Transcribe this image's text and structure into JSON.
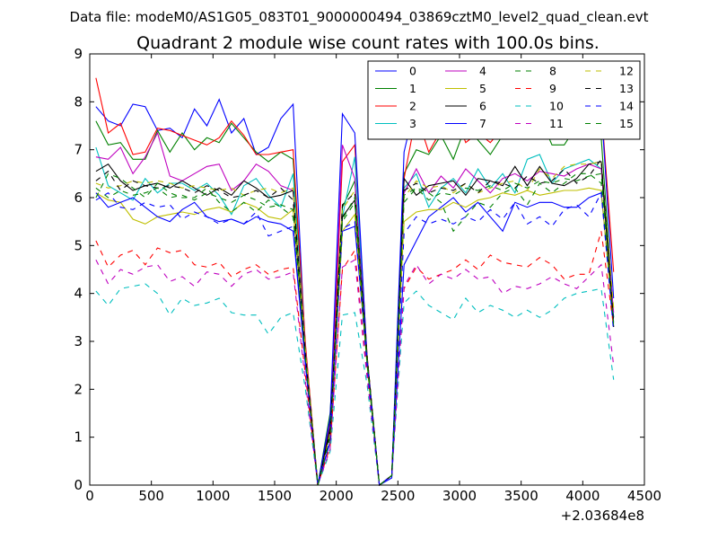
{
  "figure": {
    "suptitle": "Data file: modeM0/AS1G05_083T01_9000000494_03869cztM0_level2_quad_clean.evt"
  },
  "chart_data": {
    "type": "line",
    "title": "Quadrant 2 module wise count rates with 100.0s bins.",
    "xlabel": "",
    "ylabel": "",
    "xlim": [
      0,
      4500
    ],
    "ylim": [
      0,
      9
    ],
    "x_offset_label": "+2.03684e8",
    "xticks": [
      0,
      500,
      1000,
      1500,
      2000,
      2500,
      3000,
      3500,
      4000,
      4500
    ],
    "yticks": [
      0,
      1,
      2,
      3,
      4,
      5,
      6,
      7,
      8,
      9
    ],
    "grid": false,
    "legend_position": "top-right",
    "legend_columns": 4,
    "x": [
      50,
      150,
      250,
      350,
      450,
      550,
      650,
      750,
      850,
      950,
      1050,
      1150,
      1250,
      1350,
      1450,
      1550,
      1650,
      1750,
      1850,
      1950,
      2050,
      2150,
      2250,
      2350,
      2450,
      2550,
      2650,
      2750,
      2850,
      2950,
      3050,
      3150,
      3250,
      3350,
      3450,
      3550,
      3650,
      3750,
      3850,
      3950,
      4050,
      4150,
      4250
    ],
    "series": [
      {
        "name": "0",
        "color": "#0000ff",
        "dash": "solid",
        "values": [
          7.9,
          7.6,
          7.5,
          7.95,
          7.9,
          7.4,
          7.45,
          7.25,
          7.85,
          7.5,
          8.05,
          7.35,
          7.65,
          6.9,
          7.05,
          7.65,
          7.95,
          2.8,
          0.0,
          0.9,
          5.3,
          5.4,
          2.6,
          0.0,
          0.15,
          4.6,
          5.1,
          5.6,
          5.8,
          6.0,
          5.7,
          5.9,
          5.6,
          5.3,
          5.9,
          5.8,
          5.9,
          5.9,
          5.8,
          5.8,
          6.0,
          6.1,
          3.4
        ]
      },
      {
        "name": "1",
        "color": "#008000",
        "dash": "solid",
        "values": [
          7.6,
          7.1,
          7.15,
          6.8,
          6.8,
          7.4,
          6.95,
          7.35,
          7.0,
          7.25,
          7.15,
          7.55,
          7.25,
          6.95,
          6.75,
          6.95,
          6.8,
          2.9,
          0.0,
          1.5,
          5.8,
          6.35,
          2.7,
          0.0,
          0.2,
          6.5,
          7.0,
          6.9,
          7.3,
          6.8,
          7.5,
          7.2,
          6.9,
          7.3,
          7.4,
          7.4,
          7.7,
          7.1,
          7.1,
          7.5,
          7.6,
          7.25,
          3.5
        ]
      },
      {
        "name": "2",
        "color": "#ff0000",
        "dash": "solid",
        "values": [
          8.5,
          7.35,
          7.55,
          6.9,
          6.95,
          7.45,
          7.4,
          7.3,
          7.2,
          7.1,
          7.25,
          7.6,
          7.3,
          6.9,
          6.9,
          6.95,
          7.0,
          2.95,
          0.0,
          1.1,
          6.75,
          7.1,
          2.7,
          0.0,
          0.2,
          6.4,
          7.75,
          6.95,
          7.4,
          7.85,
          7.15,
          7.35,
          7.15,
          7.45,
          7.8,
          7.35,
          7.65,
          7.45,
          7.35,
          7.45,
          7.75,
          7.9,
          4.45
        ]
      },
      {
        "name": "3",
        "color": "#00bfbf",
        "dash": "solid",
        "values": [
          7.05,
          6.25,
          6.1,
          5.95,
          6.4,
          6.1,
          6.3,
          6.3,
          6.15,
          6.3,
          6.05,
          5.65,
          6.25,
          6.4,
          6.05,
          5.8,
          6.5,
          2.8,
          0.0,
          1.2,
          5.6,
          6.85,
          2.6,
          0.0,
          0.2,
          6.2,
          6.5,
          5.8,
          6.2,
          6.4,
          6.1,
          6.6,
          6.2,
          6.5,
          6.1,
          6.8,
          6.9,
          6.3,
          6.6,
          6.7,
          6.8,
          6.6,
          3.5
        ]
      },
      {
        "name": "4",
        "color": "#bf00bf",
        "dash": "solid",
        "values": [
          6.85,
          6.8,
          7.05,
          6.5,
          6.85,
          7.35,
          6.45,
          6.35,
          6.5,
          6.65,
          6.7,
          6.15,
          6.35,
          6.7,
          6.55,
          6.25,
          6.15,
          2.75,
          0.0,
          1.3,
          7.1,
          6.4,
          2.6,
          0.0,
          0.2,
          6.1,
          6.6,
          6.1,
          6.45,
          6.2,
          6.6,
          6.35,
          6.1,
          6.4,
          6.5,
          6.35,
          6.55,
          6.5,
          6.45,
          6.6,
          6.7,
          6.6,
          3.6
        ]
      },
      {
        "name": "5",
        "color": "#bfbf00",
        "dash": "solid",
        "values": [
          6.1,
          5.95,
          5.9,
          5.55,
          5.45,
          5.6,
          5.65,
          5.7,
          5.65,
          5.75,
          5.8,
          5.7,
          5.9,
          5.8,
          5.6,
          5.55,
          5.75,
          2.6,
          0.0,
          1.1,
          5.3,
          5.65,
          2.5,
          0.0,
          0.2,
          5.5,
          5.7,
          5.75,
          5.75,
          5.9,
          5.8,
          5.95,
          6.0,
          6.1,
          6.05,
          6.15,
          6.05,
          6.1,
          6.15,
          6.15,
          6.2,
          6.15,
          3.3
        ]
      },
      {
        "name": "6",
        "color": "#000000",
        "dash": "solid",
        "values": [
          6.55,
          6.7,
          6.35,
          6.15,
          6.25,
          6.3,
          6.2,
          6.35,
          6.2,
          6.05,
          6.2,
          6.05,
          6.35,
          6.2,
          6.0,
          6.05,
          6.15,
          2.7,
          0.0,
          1.2,
          5.6,
          5.95,
          2.6,
          0.0,
          0.2,
          6.4,
          6.05,
          6.25,
          6.3,
          6.35,
          6.05,
          6.4,
          6.35,
          6.25,
          6.65,
          6.25,
          6.65,
          6.3,
          6.25,
          6.4,
          6.7,
          6.75,
          3.3
        ]
      },
      {
        "name": "7",
        "color": "#0000ff",
        "dash": "solid",
        "values": [
          6.1,
          5.8,
          5.9,
          6.0,
          5.8,
          5.6,
          5.5,
          5.75,
          5.9,
          5.6,
          5.5,
          5.55,
          5.45,
          5.6,
          5.5,
          5.45,
          5.3,
          2.5,
          0.0,
          1.4,
          7.75,
          7.35,
          2.65,
          0.0,
          0.2,
          6.95,
          8.05,
          7.65,
          7.85,
          7.7,
          7.9,
          7.75,
          7.7,
          7.55,
          7.7,
          7.75,
          7.7,
          8.25,
          7.65,
          7.85,
          7.85,
          7.9,
          3.9
        ]
      },
      {
        "name": "8",
        "color": "#008000",
        "dash": "dashed",
        "values": [
          6.0,
          6.5,
          6.4,
          6.2,
          6.0,
          6.3,
          6.1,
          6.0,
          6.0,
          6.2,
          5.9,
          5.7,
          5.9,
          5.7,
          5.95,
          5.8,
          5.6,
          2.7,
          0.0,
          1.1,
          5.5,
          5.9,
          2.55,
          0.0,
          0.2,
          5.9,
          6.2,
          6.1,
          5.9,
          5.3,
          5.6,
          5.9,
          5.8,
          6.1,
          6.2,
          5.85,
          6.3,
          6.1,
          6.3,
          6.5,
          6.5,
          6.3,
          3.3
        ]
      },
      {
        "name": "9",
        "color": "#ff0000",
        "dash": "dashed",
        "values": [
          5.1,
          4.55,
          4.8,
          4.9,
          4.6,
          4.95,
          4.85,
          4.9,
          4.6,
          4.55,
          4.65,
          4.35,
          4.5,
          4.6,
          4.4,
          4.5,
          4.55,
          2.3,
          0.0,
          0.8,
          4.5,
          4.9,
          2.3,
          0.0,
          0.2,
          4.1,
          4.55,
          4.3,
          4.4,
          4.5,
          4.7,
          4.5,
          4.8,
          4.65,
          4.6,
          4.55,
          4.75,
          4.6,
          4.3,
          4.4,
          4.4,
          5.3,
          3.3
        ]
      },
      {
        "name": "10",
        "color": "#00bfbf",
        "dash": "dashed",
        "values": [
          4.05,
          3.75,
          4.1,
          4.15,
          4.2,
          4.0,
          3.55,
          3.9,
          3.75,
          3.8,
          3.9,
          3.6,
          3.55,
          3.55,
          3.15,
          3.5,
          3.6,
          2.0,
          0.0,
          0.7,
          3.55,
          3.6,
          2.1,
          0.0,
          0.2,
          3.8,
          4.05,
          3.75,
          3.6,
          3.45,
          3.9,
          3.6,
          3.75,
          3.65,
          3.5,
          3.65,
          3.5,
          3.65,
          3.9,
          4.0,
          4.05,
          4.1,
          2.2
        ]
      },
      {
        "name": "11",
        "color": "#bf00bf",
        "dash": "dashed",
        "values": [
          4.7,
          4.2,
          4.5,
          4.4,
          4.55,
          4.6,
          4.25,
          4.35,
          4.15,
          4.45,
          4.4,
          4.15,
          4.4,
          4.5,
          4.3,
          4.35,
          4.45,
          2.15,
          0.0,
          0.75,
          4.55,
          4.7,
          2.25,
          0.0,
          0.2,
          4.15,
          4.6,
          4.2,
          4.4,
          4.3,
          4.5,
          4.3,
          4.35,
          4.0,
          4.15,
          4.1,
          4.2,
          4.35,
          4.2,
          4.1,
          4.35,
          4.6,
          2.5
        ]
      },
      {
        "name": "12",
        "color": "#bfbf00",
        "dash": "dashed",
        "values": [
          6.3,
          6.2,
          6.25,
          6.35,
          6.3,
          6.35,
          6.3,
          6.2,
          6.25,
          6.2,
          6.15,
          6.2,
          6.05,
          6.15,
          6.2,
          6.1,
          6.2,
          2.8,
          0.0,
          1.0,
          5.75,
          6.15,
          2.7,
          0.0,
          0.2,
          6.0,
          6.35,
          6.2,
          6.25,
          6.1,
          6.3,
          6.1,
          6.2,
          6.3,
          6.35,
          6.15,
          6.6,
          6.4,
          6.65,
          6.7,
          6.7,
          6.75,
          3.7
        ]
      },
      {
        "name": "13",
        "color": "#000000",
        "dash": "dashed",
        "values": [
          6.35,
          6.55,
          6.15,
          6.35,
          6.25,
          6.2,
          6.25,
          6.2,
          6.1,
          6.25,
          6.15,
          6.0,
          6.05,
          6.15,
          6.0,
          6.2,
          5.95,
          2.7,
          0.0,
          1.1,
          5.85,
          6.1,
          2.7,
          0.0,
          0.2,
          6.15,
          6.3,
          6.1,
          6.2,
          6.15,
          6.3,
          6.1,
          6.35,
          6.3,
          6.2,
          6.45,
          6.3,
          6.35,
          6.6,
          6.3,
          6.45,
          6.8,
          3.4
        ]
      },
      {
        "name": "14",
        "color": "#0000ff",
        "dash": "dashed",
        "values": [
          5.95,
          6.1,
          5.8,
          5.75,
          5.9,
          5.8,
          5.85,
          5.55,
          5.7,
          5.6,
          5.45,
          5.55,
          5.45,
          5.7,
          5.2,
          5.3,
          5.4,
          2.55,
          0.0,
          0.95,
          5.35,
          5.5,
          2.5,
          0.0,
          0.2,
          5.25,
          5.6,
          5.45,
          5.55,
          5.45,
          5.6,
          5.5,
          5.75,
          5.55,
          5.9,
          5.45,
          5.6,
          5.4,
          5.75,
          5.85,
          5.6,
          6.1,
          3.2
        ]
      },
      {
        "name": "15",
        "color": "#008000",
        "dash": "dashed",
        "values": [
          6.2,
          6.0,
          6.15,
          6.05,
          6.1,
          6.2,
          6.0,
          6.05,
          5.95,
          6.1,
          6.0,
          5.9,
          6.05,
          5.95,
          5.8,
          5.85,
          5.75,
          2.65,
          0.0,
          1.0,
          5.55,
          6.0,
          2.6,
          0.0,
          0.2,
          6.05,
          6.2,
          5.95,
          6.1,
          6.05,
          6.2,
          6.15,
          6.25,
          6.15,
          6.3,
          6.2,
          6.35,
          6.3,
          6.4,
          6.35,
          6.45,
          6.5,
          3.35
        ]
      }
    ]
  }
}
